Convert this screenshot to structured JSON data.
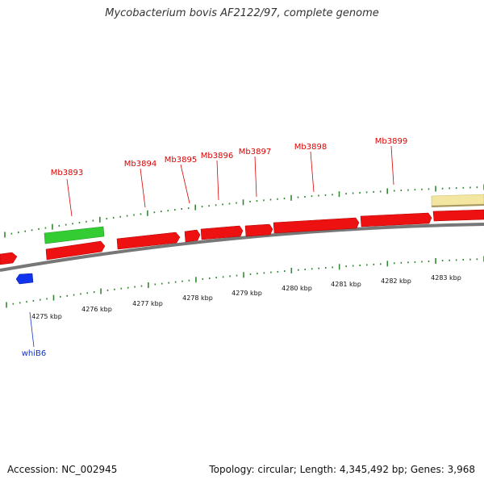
{
  "title": "Mycobacterium bovis AF2122/97, complete genome",
  "footer": {
    "accession": "Accession: NC_002945",
    "info": "Topology: circular; Length: 4,345,492 bp; Genes: 3,968"
  },
  "colors": {
    "forward_gene": "#ee1111",
    "forward_label": "#dd0000",
    "reverse_gene": "#1133ee",
    "reverse_label": "#1133cc",
    "green_feature": "#33cc33",
    "yellow_feature": "#f2e6a0",
    "tick": "#338833",
    "backbone": "#777777"
  },
  "scale_labels": [
    "4275 kbp",
    "4276 kbp",
    "4277 kbp",
    "4278 kbp",
    "4279 kbp",
    "4280 kbp",
    "4281 kbp",
    "4282 kbp",
    "4283 kbp"
  ],
  "genes": {
    "forward_labels": [
      "Mb3893",
      "Mb3894",
      "Mb3895",
      "Mb3896",
      "Mb3897",
      "Mb3898",
      "Mb3899"
    ],
    "reverse_labels": [
      "whiB6"
    ]
  }
}
